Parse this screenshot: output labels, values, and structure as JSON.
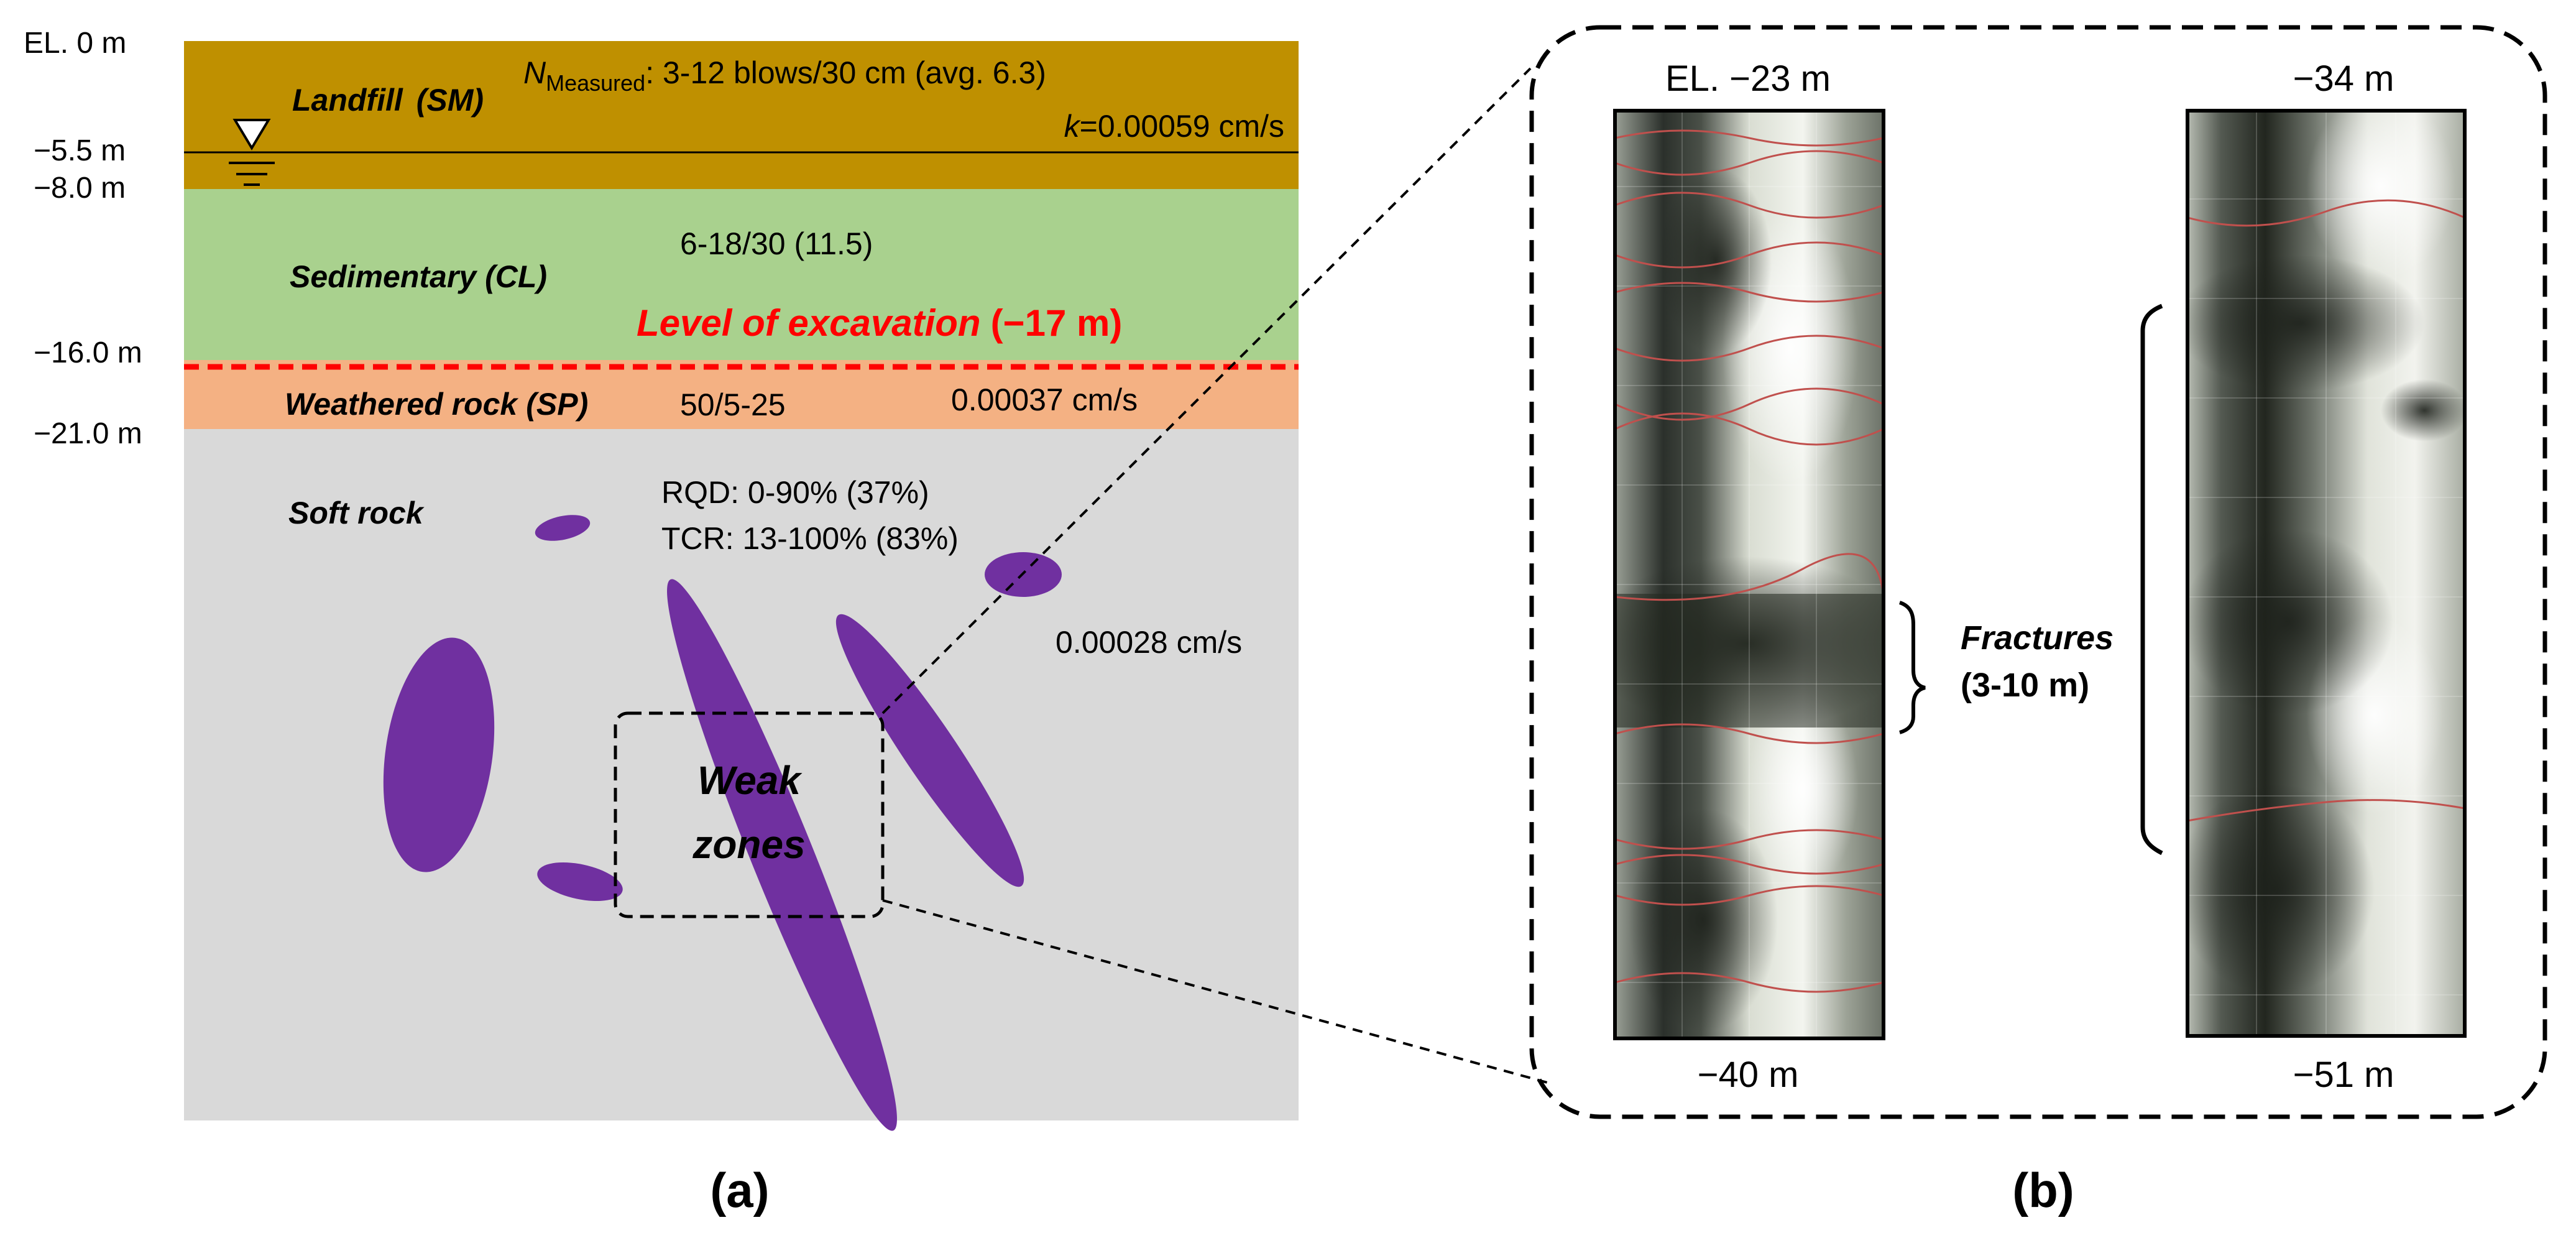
{
  "colors": {
    "landfill": "#BF9000",
    "sedimentary": "#A9D18E",
    "weathered": "#F4B183",
    "soft_rock": "#D9D9D9",
    "weak_zone": "#7030A0",
    "excavation": "#FF0000",
    "core_dark": "#2a2e28",
    "core_light": "#e4e8dc",
    "fracture_trace": "#c0504d"
  },
  "panel_a": {
    "label": "(a)",
    "elevations": [
      "EL. 0 m",
      "−5.5 m",
      "−8.0 m",
      "−16.0 m",
      "−21.0 m"
    ],
    "landfill": {
      "name": "Landfill",
      "code": "(SM)",
      "n_prefix": "N",
      "n_sub": "Measured",
      "n_value": ": 3-12 blows/30 cm  (avg. 6.3)",
      "k_prefix": "k",
      "k_value": "=0.00059 cm/s"
    },
    "sedimentary": {
      "name": "Sedimentary",
      "code": "(CL)",
      "n_value": "6-18/30  (11.5)"
    },
    "excavation": {
      "text": "Level of excavation",
      "value": "(−17 m)"
    },
    "weathered": {
      "name": "Weathered rock",
      "code": "(SP)",
      "n_value": "50/5-25",
      "k_value": "0.00037 cm/s"
    },
    "soft_rock": {
      "name": "Soft rock",
      "rqd": "RQD: 0-90% (37%)",
      "tcr": "TCR:  13-100% (83%)",
      "k_value": "0.00028 cm/s"
    },
    "weak_zones": {
      "line1": "Weak",
      "line2": "zones"
    }
  },
  "panel_b": {
    "label": "(b)",
    "core1": {
      "top": "EL. −23 m",
      "bottom": "−40 m"
    },
    "core2": {
      "top": "−34 m",
      "bottom": "−51 m"
    },
    "fractures": {
      "line1": "Fractures",
      "line2": "(3-10 m)"
    }
  }
}
